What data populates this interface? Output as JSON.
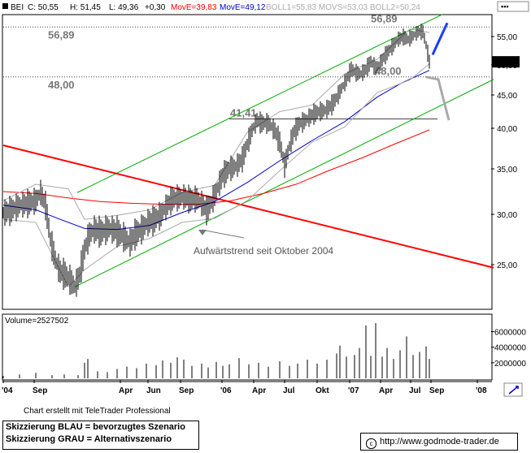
{
  "header": {
    "symbol": "BEI",
    "close_label": "C: 50,55",
    "high_label": "H: 51,45",
    "low_label": "L: 49,36",
    "change_label": "+0,30",
    "movs_label": "MovE=39,83",
    "movl_label": "MovE=49,12",
    "bb_label": "BOLL1=55,83 MOVS=53,03 BOLL2=50,24",
    "colors": {
      "movs": "#ff0000",
      "movl": "#0000cc",
      "bb": "#aaaaaa"
    }
  },
  "chart_data": [
    {
      "type": "line",
      "title": "",
      "description_of_series": "daily price bars with moving averages and Bollinger bands",
      "price_axis": {
        "ticks": [
          "25,00",
          "30,00",
          "35,00",
          "40,00",
          "45,00",
          "50,00",
          "55,00"
        ],
        "ylim": [
          21,
          57
        ],
        "last_price": "50,55"
      },
      "x_axis": {
        "ticks": [
          "'04",
          "Sep",
          "Apr",
          "Jun",
          "Sep",
          "'06",
          "Apr",
          "Jul",
          "Okt",
          "'07",
          "Apr",
          "Jul",
          "Sep",
          "'08"
        ]
      },
      "levels": [
        {
          "label": "56,89",
          "value": 56.89,
          "style": "dotted"
        },
        {
          "label": "48,00",
          "value": 48.0,
          "style": "dotted"
        },
        {
          "label": "41,41",
          "value": 41.41,
          "style": "solid"
        }
      ],
      "price_series": [
        [
          0,
          30.2
        ],
        [
          10,
          30.5
        ],
        [
          20,
          31
        ],
        [
          30,
          31.2
        ],
        [
          40,
          31.5
        ],
        [
          46,
          32.4
        ],
        [
          52,
          31
        ],
        [
          58,
          27.5
        ],
        [
          64,
          25.5
        ],
        [
          70,
          24.3
        ],
        [
          76,
          24
        ],
        [
          82,
          23.5
        ],
        [
          88,
          22.8
        ],
        [
          94,
          24
        ],
        [
          100,
          26.5
        ],
        [
          106,
          28
        ],
        [
          112,
          28.5
        ],
        [
          120,
          28.2
        ],
        [
          130,
          28.6
        ],
        [
          140,
          28.3
        ],
        [
          150,
          27.6
        ],
        [
          156,
          27.2
        ],
        [
          162,
          28
        ],
        [
          170,
          28.5
        ],
        [
          178,
          29.2
        ],
        [
          186,
          29.5
        ],
        [
          194,
          30
        ],
        [
          200,
          30.8
        ],
        [
          208,
          31.7
        ],
        [
          214,
          31.8
        ],
        [
          222,
          31.9
        ],
        [
          230,
          31.6
        ],
        [
          238,
          31.7
        ],
        [
          244,
          31.2
        ],
        [
          250,
          30.5
        ],
        [
          256,
          31.3
        ],
        [
          262,
          32.5
        ],
        [
          270,
          34.3
        ],
        [
          278,
          35.1
        ],
        [
          286,
          35.3
        ],
        [
          294,
          36.2
        ],
        [
          300,
          38
        ],
        [
          306,
          39.8
        ],
        [
          312,
          41.2
        ],
        [
          318,
          40.8
        ],
        [
          326,
          40.8
        ],
        [
          334,
          39.8
        ],
        [
          340,
          38.3
        ],
        [
          346,
          35.5
        ],
        [
          352,
          37.8
        ],
        [
          358,
          39.7
        ],
        [
          364,
          40.7
        ],
        [
          372,
          41.2
        ],
        [
          380,
          42
        ],
        [
          388,
          42.5
        ],
        [
          396,
          42.7
        ],
        [
          404,
          43.5
        ],
        [
          410,
          44.6
        ],
        [
          416,
          46.1
        ],
        [
          422,
          47.5
        ],
        [
          428,
          49.3
        ],
        [
          434,
          48.7
        ],
        [
          440,
          48.5
        ],
        [
          446,
          49.2
        ],
        [
          452,
          50.6
        ],
        [
          458,
          49.5
        ],
        [
          462,
          50
        ],
        [
          468,
          51.3
        ],
        [
          474,
          52.5
        ],
        [
          480,
          53.5
        ],
        [
          486,
          54.6
        ],
        [
          492,
          55
        ],
        [
          498,
          54.5
        ],
        [
          504,
          55.2
        ],
        [
          510,
          55.9
        ],
        [
          516,
          56
        ],
        [
          520,
          53.5
        ],
        [
          524,
          50.6
        ]
      ],
      "series": [
        {
          "name": "MovE=39,83",
          "color": "#ff0000",
          "values": [
            [
              0,
              32.5
            ],
            [
              40,
              32.3
            ],
            [
              80,
              31.8
            ],
            [
              120,
              31.4
            ],
            [
              160,
              31.2
            ],
            [
              200,
              31.1
            ],
            [
              240,
              31.1
            ],
            [
              280,
              31.5
            ],
            [
              320,
              32.3
            ],
            [
              360,
              33.3
            ],
            [
              400,
              34.8
            ],
            [
              440,
              36.3
            ],
            [
              480,
              38
            ],
            [
              524,
              39.8
            ]
          ]
        },
        {
          "name": "MovE=49,12",
          "color": "#0000cc",
          "values": [
            [
              0,
              31
            ],
            [
              40,
              30.5
            ],
            [
              70,
              29.5
            ],
            [
              100,
              28.6
            ],
            [
              140,
              28.5
            ],
            [
              180,
              28.9
            ],
            [
              220,
              30.2
            ],
            [
              260,
              31.4
            ],
            [
              300,
              33.5
            ],
            [
              340,
              36
            ],
            [
              380,
              38.5
            ],
            [
              420,
              41
            ],
            [
              460,
              44.7
            ],
            [
              490,
              47
            ],
            [
              524,
              49.1
            ]
          ]
        },
        {
          "name": "BOLL1=55,83",
          "color": "#aaaaaa",
          "values": [
            [
              0,
              31.5
            ],
            [
              40,
              33.3
            ],
            [
              80,
              32.8
            ],
            [
              100,
              29.5
            ],
            [
              140,
              29.9
            ],
            [
              180,
              30.5
            ],
            [
              220,
              32.4
            ],
            [
              260,
              33.2
            ],
            [
              300,
              39.5
            ],
            [
              340,
              42.5
            ],
            [
              380,
              43.5
            ],
            [
              420,
              48.5
            ],
            [
              460,
              51
            ],
            [
              500,
              56.5
            ],
            [
              524,
              55.8
            ]
          ]
        },
        {
          "name": "BOLL2=50,24",
          "color": "#aaaaaa",
          "values": [
            [
              0,
              29.5
            ],
            [
              40,
              29.2
            ],
            [
              80,
              22.8
            ],
            [
              100,
              24.5
            ],
            [
              140,
              26.8
            ],
            [
              180,
              27.6
            ],
            [
              220,
              29.2
            ],
            [
              260,
              29.6
            ],
            [
              300,
              31.5
            ],
            [
              340,
              34.8
            ],
            [
              380,
              38.3
            ],
            [
              420,
              40.2
            ],
            [
              460,
              45.4
            ],
            [
              500,
              47.5
            ],
            [
              524,
              50.2
            ]
          ]
        }
      ],
      "trend_channel": [
        {
          "from": [
            88,
            22.8
          ],
          "to": [
            603,
            47.6
          ],
          "color": "#00aa00"
        },
        {
          "from": [
            91,
            32.4
          ],
          "to": [
            540,
            59.4
          ],
          "color": "#00aa00"
        }
      ],
      "long_trend": {
        "from": [
          0,
          37.9
        ],
        "to": [
          603,
          24.7
        ],
        "color": "#ff0000"
      },
      "scenario_blue": [
        [
          528,
          51.8
        ],
        [
          546,
          57.7
        ]
      ],
      "scenario_gray": [
        [
          520,
          48
        ],
        [
          535,
          47.6
        ],
        [
          548,
          41.2
        ]
      ],
      "annotations": [
        {
          "text": "Aufwärtstrend seit Oktober 2004",
          "arrow_to": [
            240,
            28.7
          ]
        }
      ]
    },
    {
      "type": "bar",
      "title": "Volume=2527502",
      "y_ticks": [
        "2000000",
        "4000000",
        "6000000"
      ],
      "ylim": [
        0,
        7000000
      ],
      "values": [
        [
          0,
          300000
        ],
        [
          20,
          500000
        ],
        [
          40,
          700000
        ],
        [
          60,
          400000
        ],
        [
          75,
          500000
        ],
        [
          92,
          400000
        ],
        [
          100,
          2000000
        ],
        [
          104,
          2500000
        ],
        [
          116,
          900000
        ],
        [
          128,
          800000
        ],
        [
          140,
          1200000
        ],
        [
          152,
          1500000
        ],
        [
          164,
          1300000
        ],
        [
          176,
          1900000
        ],
        [
          188,
          1700000
        ],
        [
          196,
          2300000
        ],
        [
          206,
          2000000
        ],
        [
          214,
          2700000
        ],
        [
          222,
          2400000
        ],
        [
          232,
          1600000
        ],
        [
          244,
          1900000
        ],
        [
          252,
          1400000
        ],
        [
          262,
          2100000
        ],
        [
          270,
          1600000
        ],
        [
          278,
          1800000
        ],
        [
          290,
          2600000
        ],
        [
          302,
          1800000
        ],
        [
          314,
          2000000
        ],
        [
          326,
          1500000
        ],
        [
          340,
          2200000
        ],
        [
          352,
          1600000
        ],
        [
          362,
          1900000
        ],
        [
          374,
          2400000
        ],
        [
          386,
          1900000
        ],
        [
          398,
          2400000
        ],
        [
          410,
          3200000
        ],
        [
          414,
          4200000
        ],
        [
          422,
          2800000
        ],
        [
          432,
          3000000
        ],
        [
          438,
          3900000
        ],
        [
          446,
          6800000
        ],
        [
          452,
          2900000
        ],
        [
          458,
          7100000
        ],
        [
          466,
          2800000
        ],
        [
          472,
          3900000
        ],
        [
          480,
          2500000
        ],
        [
          488,
          3600000
        ],
        [
          496,
          5400000
        ],
        [
          504,
          3000000
        ],
        [
          512,
          3400000
        ],
        [
          520,
          4100000
        ],
        [
          524,
          2500000
        ]
      ]
    }
  ],
  "footer": {
    "credit": "Chart erstellt mit TeleTrader Professional",
    "legend_blue": "Skizzierung BLAU = bevorzugtes Szenario",
    "legend_gray": "Skizzierung GRAU = Alternativszenario",
    "url": "http://www.godmode-trader.de",
    "url_icon": "copyright-icon"
  }
}
